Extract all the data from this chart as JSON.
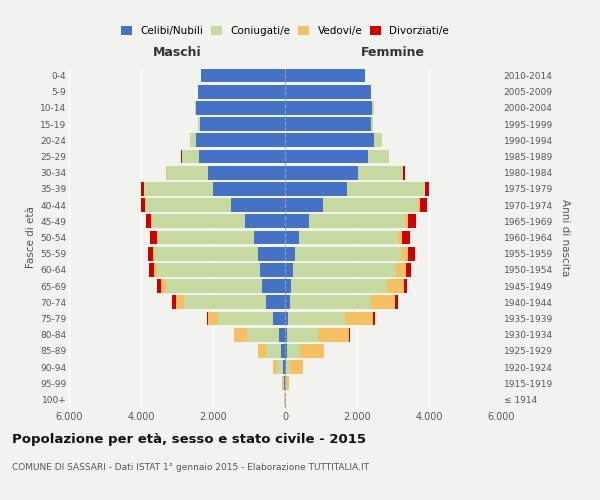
{
  "age_groups": [
    "100+",
    "95-99",
    "90-94",
    "85-89",
    "80-84",
    "75-79",
    "70-74",
    "65-69",
    "60-64",
    "55-59",
    "50-54",
    "45-49",
    "40-44",
    "35-39",
    "30-34",
    "25-29",
    "20-24",
    "15-19",
    "10-14",
    "5-9",
    "0-4"
  ],
  "birth_years": [
    "≤ 1914",
    "1915-1919",
    "1920-1924",
    "1925-1929",
    "1930-1934",
    "1935-1939",
    "1940-1944",
    "1945-1949",
    "1950-1954",
    "1955-1959",
    "1960-1964",
    "1965-1969",
    "1970-1974",
    "1975-1979",
    "1980-1984",
    "1985-1989",
    "1990-1994",
    "1995-1999",
    "2000-2004",
    "2005-2009",
    "2010-2014"
  ],
  "male_celibi": [
    10,
    25,
    60,
    110,
    180,
    330,
    520,
    640,
    690,
    740,
    860,
    1120,
    1500,
    2000,
    2150,
    2380,
    2480,
    2360,
    2470,
    2420,
    2320
  ],
  "male_coniugati": [
    12,
    40,
    175,
    420,
    870,
    1520,
    2290,
    2670,
    2870,
    2870,
    2670,
    2570,
    2370,
    1920,
    1140,
    490,
    155,
    55,
    18,
    4,
    2
  ],
  "male_vedovi": [
    3,
    22,
    105,
    225,
    355,
    285,
    225,
    135,
    75,
    50,
    32,
    22,
    12,
    6,
    3,
    3,
    3,
    0,
    0,
    0,
    0
  ],
  "male_divorziati": [
    0,
    0,
    3,
    7,
    16,
    42,
    92,
    122,
    142,
    152,
    192,
    142,
    122,
    72,
    22,
    7,
    3,
    0,
    0,
    0,
    0
  ],
  "female_celibi": [
    3,
    6,
    22,
    45,
    65,
    85,
    125,
    175,
    225,
    275,
    375,
    675,
    1045,
    1715,
    2015,
    2315,
    2475,
    2375,
    2425,
    2375,
    2225
  ],
  "female_coniugati": [
    6,
    22,
    125,
    365,
    860,
    1590,
    2270,
    2650,
    2860,
    2960,
    2760,
    2660,
    2660,
    2160,
    1260,
    560,
    215,
    75,
    38,
    10,
    3
  ],
  "female_vedovi": [
    15,
    85,
    360,
    660,
    860,
    770,
    670,
    480,
    282,
    185,
    108,
    68,
    40,
    22,
    10,
    6,
    3,
    0,
    0,
    0,
    0
  ],
  "female_divorziati": [
    0,
    0,
    3,
    10,
    22,
    52,
    72,
    92,
    142,
    192,
    242,
    242,
    192,
    112,
    52,
    16,
    7,
    0,
    0,
    0,
    0
  ],
  "colors": {
    "celibi": "#4472C4",
    "coniugati": "#C5D9A0",
    "vedovi": "#F5C060",
    "divorziati": "#CC0000"
  },
  "xlim": 6000,
  "title": "Popolazione per età, sesso e stato civile - 2015",
  "subtitle": "COMUNE DI SASSARI - Dati ISTAT 1° gennaio 2015 - Elaborazione TUTTITALIA.IT",
  "xlabel_left": "Maschi",
  "xlabel_right": "Femmine",
  "ylabel_left": "Fasce di età",
  "ylabel_right": "Anni di nascita",
  "legend_labels": [
    "Celibi/Nubili",
    "Coniugati/e",
    "Vedovi/e",
    "Divorziati/e"
  ],
  "tick_positions": [
    -6000,
    -4000,
    -2000,
    0,
    2000,
    4000,
    6000
  ],
  "tick_labels": [
    "6.000",
    "4.000",
    "2.000",
    "0",
    "2.000",
    "4.000",
    "6.000"
  ],
  "background_color": "#F2F2EE",
  "bar_height": 0.85
}
